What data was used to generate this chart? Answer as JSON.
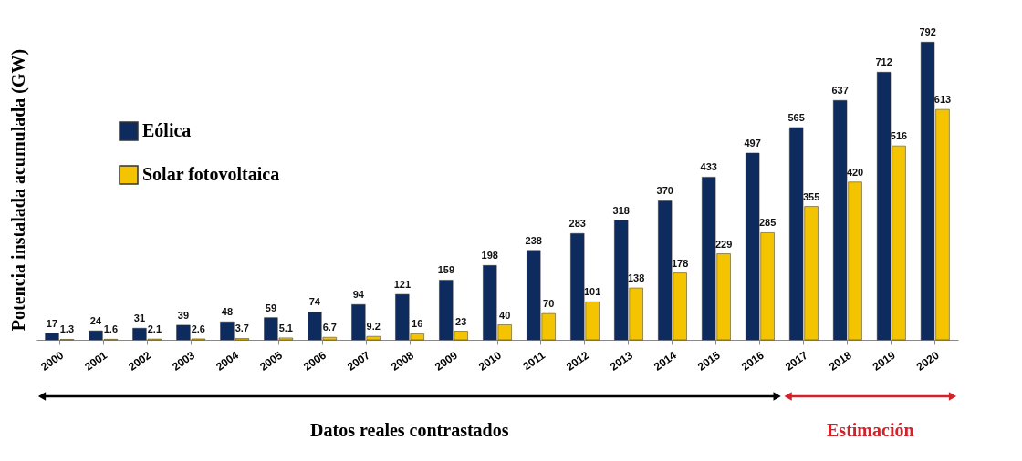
{
  "chart_data": {
    "type": "bar",
    "ylabel": "Potencia instalada acumulada (GW)",
    "categories": [
      "2000",
      "2001",
      "2002",
      "2003",
      "2004",
      "2005",
      "2006",
      "2007",
      "2008",
      "2009",
      "2010",
      "2011",
      "2012",
      "2013",
      "2014",
      "2015",
      "2016",
      "2017",
      "2018",
      "2019",
      "2020"
    ],
    "series": [
      {
        "name": "Eólica",
        "color": "#0d2b5e",
        "values": [
          17,
          24,
          31,
          39,
          48,
          59,
          74,
          94,
          121,
          159,
          198,
          238,
          283,
          318,
          370,
          433,
          497,
          565,
          637,
          712,
          792
        ]
      },
      {
        "name": "Solar fotovoltaica",
        "color": "#f5c400",
        "values": [
          1.3,
          1.6,
          2.1,
          2.6,
          3.7,
          5.1,
          6.7,
          9.2,
          16,
          23,
          40,
          70,
          101,
          138,
          178,
          229,
          285,
          355,
          420,
          516,
          613
        ]
      }
    ],
    "data_labels": true,
    "legend": "top left",
    "grid": false,
    "annotations": [
      "Datos reales contrastados",
      "Estimación"
    ]
  }
}
